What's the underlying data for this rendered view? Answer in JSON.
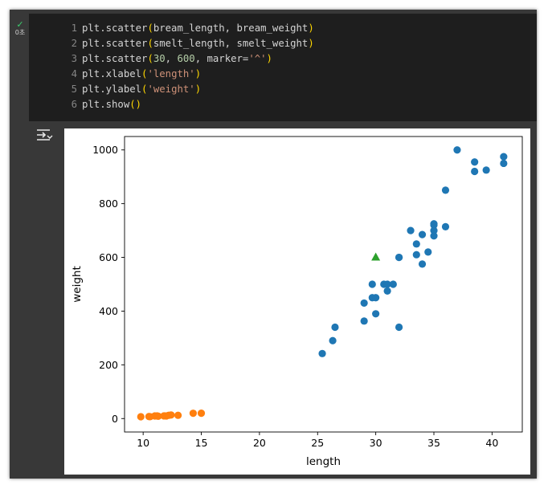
{
  "cell": {
    "status_label": "0초",
    "code_lines": [
      {
        "num": "1",
        "parts": [
          {
            "t": "plt.scatter",
            "c": ""
          },
          {
            "t": "(",
            "c": "y"
          },
          {
            "t": "bream_length, bream_weight",
            "c": ""
          },
          {
            "t": ")",
            "c": "y"
          }
        ]
      },
      {
        "num": "2",
        "parts": [
          {
            "t": "plt.scatter",
            "c": ""
          },
          {
            "t": "(",
            "c": "y"
          },
          {
            "t": "smelt_length, smelt_weight",
            "c": ""
          },
          {
            "t": ")",
            "c": "y"
          }
        ]
      },
      {
        "num": "3",
        "parts": [
          {
            "t": "plt.scatter",
            "c": ""
          },
          {
            "t": "(",
            "c": "y"
          },
          {
            "t": "30",
            "c": "n"
          },
          {
            "t": ", ",
            "c": ""
          },
          {
            "t": "600",
            "c": "n"
          },
          {
            "t": ", marker=",
            "c": ""
          },
          {
            "t": "'^'",
            "c": "s"
          },
          {
            "t": ")",
            "c": "y"
          }
        ]
      },
      {
        "num": "4",
        "parts": [
          {
            "t": "plt.xlabel",
            "c": ""
          },
          {
            "t": "(",
            "c": "y"
          },
          {
            "t": "'length'",
            "c": "s"
          },
          {
            "t": ")",
            "c": "y"
          }
        ]
      },
      {
        "num": "5",
        "parts": [
          {
            "t": "plt.ylabel",
            "c": ""
          },
          {
            "t": "(",
            "c": "y"
          },
          {
            "t": "'weight'",
            "c": "s"
          },
          {
            "t": ")",
            "c": "y"
          }
        ]
      },
      {
        "num": "6",
        "parts": [
          {
            "t": "plt.show",
            "c": ""
          },
          {
            "t": "()",
            "c": "y"
          }
        ]
      }
    ]
  },
  "chart_data": {
    "type": "scatter",
    "title": "",
    "xlabel": "length",
    "ylabel": "weight",
    "xlim": [
      8.4,
      42.6
    ],
    "ylim": [
      -50,
      1050
    ],
    "xticks": [
      10,
      15,
      20,
      25,
      30,
      35,
      40
    ],
    "yticks": [
      0,
      200,
      400,
      600,
      800,
      1000
    ],
    "grid": false,
    "legend": "none",
    "series": [
      {
        "color": "#1f77b4",
        "marker": "circle",
        "x": [
          25.4,
          26.3,
          26.5,
          29.0,
          29.0,
          29.7,
          29.7,
          30.0,
          30.0,
          30.7,
          31.0,
          31.0,
          31.5,
          32.0,
          32.0,
          32.0,
          33.0,
          33.5,
          33.5,
          34.0,
          34.0,
          34.5,
          35.0,
          35.0,
          35.0,
          35.0,
          36.0,
          36.0,
          37.0,
          38.5,
          38.5,
          39.5,
          41.0,
          41.0
        ],
        "y": [
          242,
          290,
          340,
          363,
          430,
          450,
          500,
          390,
          450,
          500,
          475,
          500,
          500,
          340,
          600,
          600,
          700,
          610,
          650,
          575,
          685,
          620,
          680,
          700,
          725,
          720,
          714,
          850,
          1000,
          920,
          955,
          925,
          975,
          950
        ]
      },
      {
        "color": "#ff7f0e",
        "marker": "circle",
        "x": [
          9.8,
          10.5,
          10.6,
          11.0,
          11.2,
          11.3,
          11.8,
          11.8,
          12.0,
          12.2,
          12.4,
          13.0,
          14.3,
          15.0
        ],
        "y": [
          6.7,
          7.5,
          7.0,
          9.7,
          9.8,
          8.7,
          10.0,
          9.9,
          9.8,
          12.2,
          13.4,
          12.2,
          19.7,
          19.9
        ]
      },
      {
        "color": "#2ca02c",
        "marker": "triangle",
        "x": [
          30
        ],
        "y": [
          600
        ]
      }
    ]
  }
}
